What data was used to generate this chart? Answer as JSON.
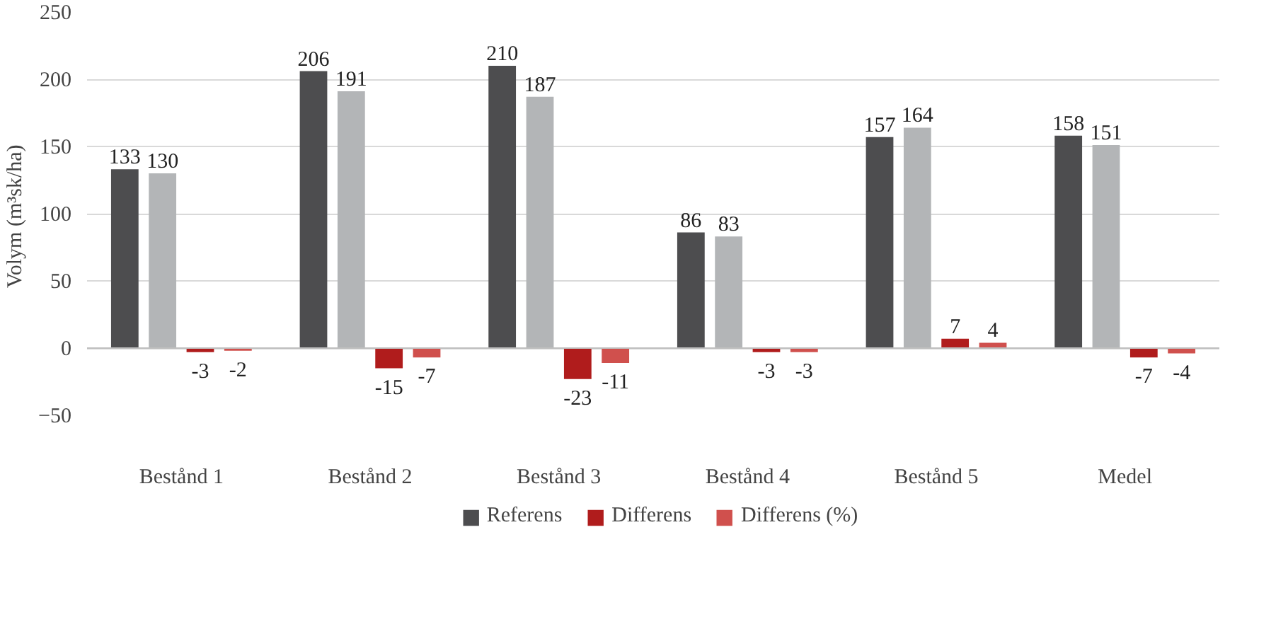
{
  "chart_data": {
    "type": "bar",
    "ylabel": "Volym  (m³sk/ha)",
    "categories": [
      "Bestånd 1",
      "Bestånd 2",
      "Bestånd 3",
      "Bestånd 4",
      "Bestånd 5",
      "Medel"
    ],
    "series": [
      {
        "name": "Referens",
        "color": "#4d4d4f",
        "values": [
          133,
          206,
          210,
          86,
          157,
          158
        ]
      },
      {
        "color": "#b3b5b7",
        "values": [
          130,
          191,
          187,
          83,
          164,
          151
        ]
      },
      {
        "name": "Differens",
        "color": "#b01c1c",
        "values": [
          -3,
          -15,
          -23,
          -3,
          7,
          -7
        ]
      },
      {
        "name": "Differens (%)",
        "color": "#d0504d",
        "values": [
          -2,
          -7,
          -11,
          -3,
          4,
          -4
        ]
      }
    ],
    "ylim": [
      -50,
      250
    ],
    "yticks": [
      -50,
      0,
      50,
      100,
      150,
      200,
      250
    ],
    "grid": "y",
    "legend": "bottom",
    "data_labels": true
  }
}
